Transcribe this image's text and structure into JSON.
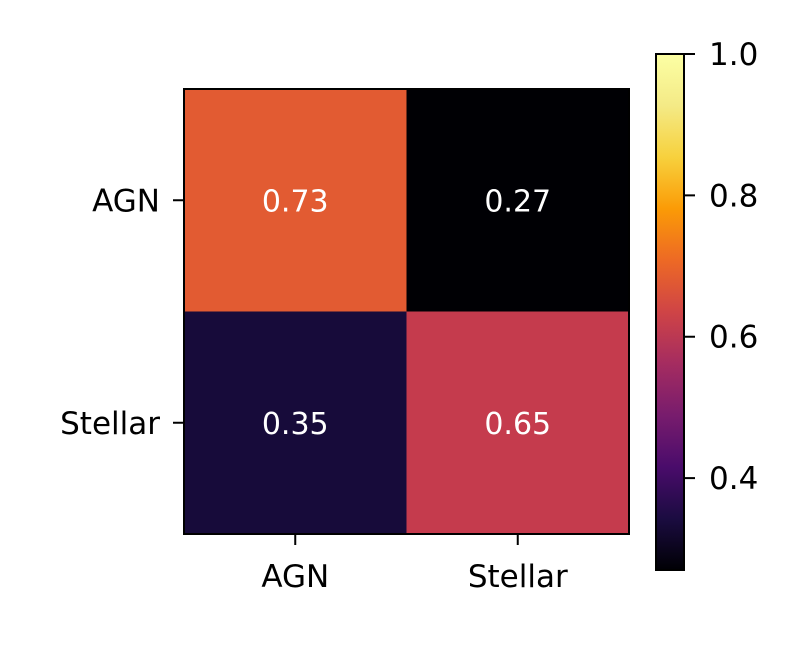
{
  "chart_data": {
    "type": "heatmap",
    "title": "",
    "xlabel": "",
    "ylabel": "",
    "x_categories": [
      "AGN",
      "Stellar"
    ],
    "y_categories": [
      "AGN",
      "Stellar"
    ],
    "values": [
      [
        0.73,
        0.27
      ],
      [
        0.35,
        0.65
      ]
    ],
    "value_labels": [
      [
        "0.73",
        "0.27"
      ],
      [
        "0.35",
        "0.65"
      ]
    ],
    "colormap": "inferno",
    "cell_colors": [
      [
        "#e25b32",
        "#000004"
      ],
      [
        "#170b3a",
        "#c53b4d"
      ]
    ],
    "colorbar": {
      "range": [
        0.27,
        1.0
      ],
      "ticks": [
        0.4,
        0.6,
        0.8,
        1.0
      ],
      "tick_labels": [
        "0.4",
        "0.6",
        "0.8",
        "1.0"
      ]
    },
    "annotation_text_color": "#ffffff"
  }
}
